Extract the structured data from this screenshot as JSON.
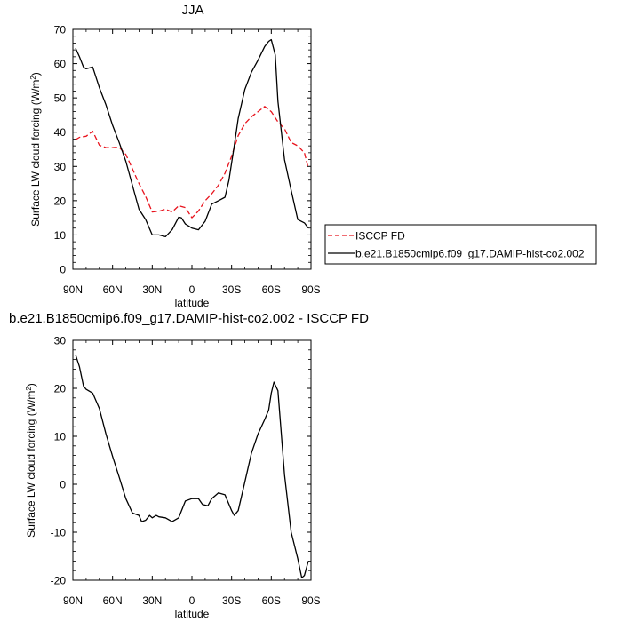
{
  "chart_data": [
    {
      "type": "line",
      "title": "JJA",
      "xlabel": "latitude",
      "ylabel": "Surface LW cloud forcing (W/m²)",
      "ylabel_main": "Surface LW cloud forcing (W/m",
      "ylabel_sup": "2",
      "ylabel_end": ")",
      "xlim": [
        90,
        -90
      ],
      "ylim": [
        0,
        70
      ],
      "xticks": [
        90,
        60,
        30,
        0,
        -30,
        -60,
        -90
      ],
      "xtick_labels": [
        "90N",
        "60N",
        "30N",
        "0",
        "30S",
        "60S",
        "90S"
      ],
      "yticks": [
        0,
        10,
        20,
        30,
        40,
        50,
        60,
        70
      ],
      "ytick_labels": [
        "0",
        "10",
        "20",
        "30",
        "40",
        "50",
        "60",
        "70"
      ],
      "legend": "right",
      "series": [
        {
          "name": "ISCCP FD",
          "color": "#e8141e",
          "style": "dashed",
          "x": [
            88,
            85,
            80,
            75,
            70,
            65,
            60,
            55,
            50,
            45,
            40,
            35,
            30,
            25,
            20,
            15,
            10,
            5,
            0,
            -5,
            -10,
            -15,
            -20,
            -25,
            -30,
            -35,
            -40,
            -45,
            -50,
            -55,
            -60,
            -65,
            -70,
            -75,
            -80,
            -85,
            -88
          ],
          "y": [
            37.8,
            38.5,
            38.8,
            40.3,
            36.2,
            35.5,
            35.5,
            35.6,
            33.5,
            29.3,
            25.0,
            21.2,
            16.7,
            16.9,
            17.5,
            16.7,
            18.5,
            18.0,
            15.0,
            17.0,
            20.0,
            22.0,
            24.5,
            28.0,
            33.0,
            39.0,
            42.5,
            44.5,
            46.0,
            47.5,
            46.0,
            43.0,
            41.0,
            37.0,
            36.0,
            34.0,
            29.5
          ]
        },
        {
          "name": "b.e21.B1850cmip6.f09_g17.DAMIP-hist-co2.002",
          "color": "#000000",
          "style": "solid",
          "x": [
            88,
            85,
            82,
            80,
            75,
            70,
            65,
            60,
            55,
            50,
            45,
            40,
            35,
            30,
            25,
            20,
            15,
            10,
            8,
            5,
            2,
            0,
            -5,
            -10,
            -15,
            -20,
            -25,
            -28,
            -32,
            -35,
            -40,
            -45,
            -50,
            -55,
            -58,
            -60,
            -63,
            -65,
            -70,
            -75,
            -80,
            -85,
            -88
          ],
          "y": [
            64.5,
            62.0,
            59.0,
            58.5,
            59.0,
            53.0,
            48.0,
            42.0,
            37.0,
            31.5,
            24.5,
            17.5,
            14.5,
            10.0,
            10.0,
            9.5,
            11.5,
            15.2,
            15.0,
            13.2,
            12.5,
            12.0,
            11.5,
            14.0,
            19.0,
            20.0,
            21.0,
            26.0,
            36.0,
            44.0,
            52.5,
            57.5,
            61.0,
            65.0,
            66.5,
            67.0,
            62.5,
            49.0,
            32.0,
            23.0,
            14.5,
            13.5,
            12.0
          ]
        }
      ]
    },
    {
      "type": "line",
      "title": "b.e21.B1850cmip6.f09_g17.DAMIP-hist-co2.002 - ISCCP FD",
      "xlabel": "latitude",
      "ylabel": "Surface LW cloud forcing (W/m²)",
      "ylabel_main": "Surface LW cloud forcing (W/m",
      "ylabel_sup": "2",
      "ylabel_end": ")",
      "xlim": [
        90,
        -90
      ],
      "ylim": [
        -20,
        30
      ],
      "xticks": [
        90,
        60,
        30,
        0,
        -30,
        -60,
        -90
      ],
      "xtick_labels": [
        "90N",
        "60N",
        "30N",
        "0",
        "30S",
        "60S",
        "90S"
      ],
      "yticks": [
        -20,
        -10,
        0,
        10,
        20,
        30
      ],
      "ytick_labels": [
        "-20",
        "-10",
        "0",
        "10",
        "20",
        "30"
      ],
      "series": [
        {
          "color": "#000000",
          "style": "solid",
          "x": [
            88,
            85,
            82,
            80,
            75,
            70,
            65,
            60,
            55,
            50,
            45,
            40,
            38,
            35,
            32,
            30,
            27,
            25,
            20,
            15,
            10,
            5,
            0,
            -5,
            -8,
            -12,
            -15,
            -20,
            -25,
            -30,
            -32,
            -35,
            -40,
            -45,
            -50,
            -55,
            -58,
            -60,
            -62,
            -65,
            -70,
            -75,
            -80,
            -83,
            -85,
            -88
          ],
          "y": [
            27.0,
            24.5,
            20.5,
            19.8,
            19.0,
            15.8,
            10.5,
            5.8,
            1.5,
            -3.0,
            -6.0,
            -6.5,
            -7.8,
            -7.5,
            -6.5,
            -7.0,
            -6.5,
            -6.8,
            -7.0,
            -7.8,
            -7.0,
            -3.5,
            -3.0,
            -3.0,
            -4.2,
            -4.5,
            -3.0,
            -1.8,
            -2.2,
            -5.5,
            -6.5,
            -5.5,
            0.5,
            6.5,
            10.5,
            13.5,
            15.5,
            19.0,
            21.3,
            19.5,
            2.0,
            -10.0,
            -15.5,
            -19.5,
            -19.0,
            -16.0
          ]
        }
      ]
    }
  ]
}
